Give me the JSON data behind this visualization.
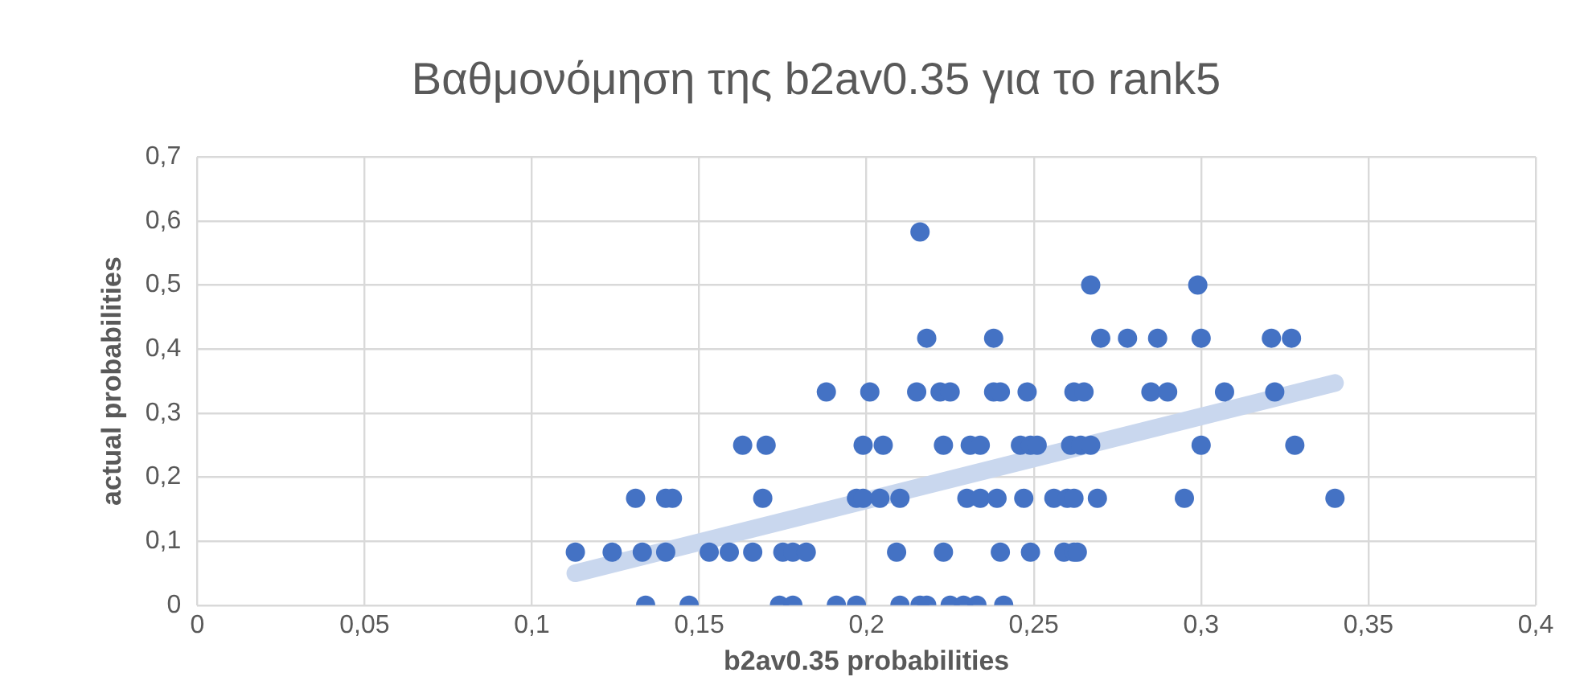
{
  "chart_data": {
    "type": "scatter",
    "title": "Βαθμονόμηση της b2av0.35 για το rank5",
    "xlabel": "b2av0.35 probabilities",
    "ylabel": "actual probabilities",
    "xlim": [
      0,
      0.4
    ],
    "xticks": [
      {
        "value": 0,
        "label": "0"
      },
      {
        "value": 0.05,
        "label": "0,05"
      },
      {
        "value": 0.1,
        "label": "0,1"
      },
      {
        "value": 0.15,
        "label": "0,15"
      },
      {
        "value": 0.2,
        "label": "0,2"
      },
      {
        "value": 0.25,
        "label": "0,25"
      },
      {
        "value": 0.3,
        "label": "0,3"
      },
      {
        "value": 0.35,
        "label": "0,35"
      },
      {
        "value": 0.4,
        "label": "0,4"
      }
    ],
    "ylim": [
      0,
      0.7
    ],
    "yticks": [
      {
        "value": 0,
        "label": "0"
      },
      {
        "value": 0.1,
        "label": "0,1"
      },
      {
        "value": 0.2,
        "label": "0,2"
      },
      {
        "value": 0.3,
        "label": "0,3"
      },
      {
        "value": 0.4,
        "label": "0,4"
      },
      {
        "value": 0.5,
        "label": "0,5"
      },
      {
        "value": 0.6,
        "label": "0,6"
      },
      {
        "value": 0.7,
        "label": "0,7"
      }
    ],
    "grid": true,
    "marker": "circle",
    "series": [
      {
        "type": "line",
        "marker": "none",
        "color": "#c9d7ee",
        "x": [
          0.113,
          0.34
        ],
        "values": [
          0.05,
          0.347
        ]
      },
      {
        "type": "scatter",
        "color": "#4472c4",
        "x": [
          0.134,
          0.147,
          0.174,
          0.178,
          0.191,
          0.197,
          0.21,
          0.216,
          0.218,
          0.225,
          0.229,
          0.233,
          0.241,
          0.113,
          0.124,
          0.133,
          0.14,
          0.153,
          0.159,
          0.166,
          0.175,
          0.178,
          0.182,
          0.209,
          0.223,
          0.24,
          0.249,
          0.259,
          0.262,
          0.263,
          0.131,
          0.14,
          0.142,
          0.169,
          0.197,
          0.199,
          0.204,
          0.21,
          0.23,
          0.234,
          0.239,
          0.247,
          0.256,
          0.26,
          0.262,
          0.269,
          0.295,
          0.34,
          0.163,
          0.17,
          0.199,
          0.205,
          0.223,
          0.231,
          0.234,
          0.246,
          0.249,
          0.251,
          0.261,
          0.264,
          0.267,
          0.3,
          0.328,
          0.188,
          0.201,
          0.215,
          0.222,
          0.225,
          0.238,
          0.24,
          0.248,
          0.262,
          0.265,
          0.285,
          0.29,
          0.307,
          0.322,
          0.218,
          0.238,
          0.27,
          0.278,
          0.287,
          0.3,
          0.321,
          0.327,
          0.267,
          0.299,
          0.216
        ],
        "values": [
          0,
          0,
          0,
          0,
          0,
          0,
          0,
          0,
          0,
          0,
          0,
          0,
          0,
          0.083,
          0.083,
          0.083,
          0.083,
          0.083,
          0.083,
          0.083,
          0.083,
          0.083,
          0.083,
          0.083,
          0.083,
          0.083,
          0.083,
          0.083,
          0.083,
          0.083,
          0.167,
          0.167,
          0.167,
          0.167,
          0.167,
          0.167,
          0.167,
          0.167,
          0.167,
          0.167,
          0.167,
          0.167,
          0.167,
          0.167,
          0.167,
          0.167,
          0.167,
          0.167,
          0.25,
          0.25,
          0.25,
          0.25,
          0.25,
          0.25,
          0.25,
          0.25,
          0.25,
          0.25,
          0.25,
          0.25,
          0.25,
          0.25,
          0.25,
          0.333,
          0.333,
          0.333,
          0.333,
          0.333,
          0.333,
          0.333,
          0.333,
          0.333,
          0.333,
          0.333,
          0.333,
          0.333,
          0.333,
          0.417,
          0.417,
          0.417,
          0.417,
          0.417,
          0.417,
          0.417,
          0.417,
          0.5,
          0.5,
          0.583
        ]
      }
    ]
  }
}
